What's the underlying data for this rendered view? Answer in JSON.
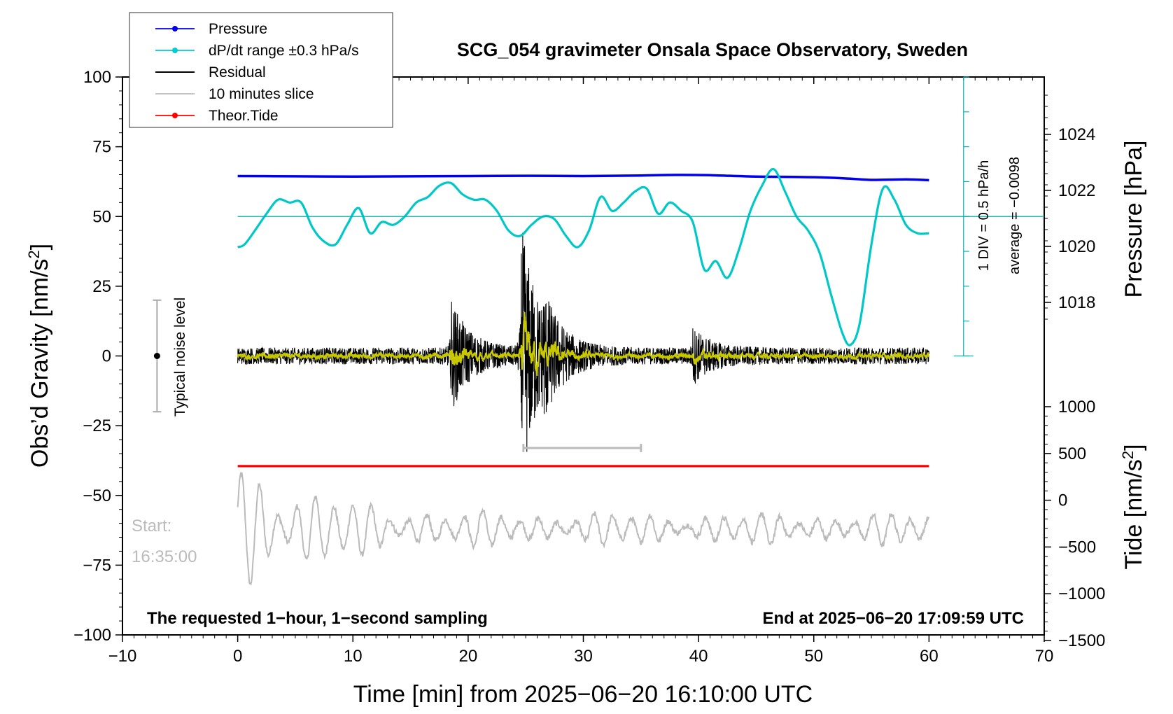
{
  "chart_data": {
    "type": "line",
    "title": "SCG_054 gravimeter Onsala Space Observatory, Sweden",
    "xlabel": "Time [min] from 2025−06−20 16:10:00 UTC",
    "ylabel_left": "Obs’d Gravity [nm/s²]",
    "ylabel_right_top": "Pressure [hPa]",
    "ylabel_right_bottom": "Tide [nm/s²]",
    "xlim": [
      -10,
      70
    ],
    "ylim_left": [
      -100,
      100
    ],
    "xticks": [
      "−10",
      "0",
      "10",
      "20",
      "30",
      "40",
      "50",
      "60",
      "70"
    ],
    "yticks_left": [
      "100",
      "75",
      "50",
      "25",
      "0",
      "−25",
      "−50",
      "−75",
      "−100"
    ],
    "pressure_ticks": [
      "1024",
      "1022",
      "1020",
      "1018"
    ],
    "tide_ticks": [
      "1000",
      "500",
      "0",
      "−500",
      "−1000",
      "−1500"
    ],
    "legend": [
      {
        "label": "Pressure",
        "color": "#0000ee",
        "marker": true
      },
      {
        "label": "dP/dt range ±0.3 hPa/s",
        "color": "#00cccc",
        "marker": true
      },
      {
        "label": "Residual",
        "color": "#000000",
        "marker": false
      },
      {
        "label": "10 minutes slice",
        "color": "#bbbbbb",
        "marker": false
      },
      {
        "label": "Theor.Tide",
        "color": "#ff0000",
        "marker": true
      }
    ],
    "annotations": {
      "noise_label": "Typical noise level",
      "div_label": "1 DIV = 0.5 hPa/h",
      "average_label": "average = −0.0098",
      "start_label": "Start:",
      "start_time": "16:35:00",
      "bottom_left": "The requested 1−hour, 1−second sampling",
      "bottom_right": "End at 2025−06−20 17:09:59 UTC"
    },
    "series": [
      {
        "name": "Pressure",
        "color": "#0000ee",
        "x": [
          0,
          5,
          10,
          15,
          20,
          25,
          30,
          35,
          38,
          41,
          45,
          50,
          53,
          55,
          58,
          60
        ],
        "y": [
          64.5,
          64.4,
          64.3,
          64.4,
          64.5,
          64.6,
          64.5,
          64.7,
          64.9,
          64.8,
          64.3,
          64.1,
          63.6,
          63.1,
          63.3,
          63.0
        ]
      },
      {
        "name": "dP/dt range ±0.3 hPa/s",
        "color": "#00c8c8",
        "x": [
          0,
          0.6,
          1.5,
          2.5,
          3.5,
          4.5,
          5.5,
          6.5,
          7.5,
          8.5,
          9.5,
          10.5,
          11.5,
          12.5,
          13.5,
          14.5,
          15.5,
          16.5,
          17.5,
          18.5,
          19.5,
          20.5,
          21.5,
          22.5,
          23.5,
          24.5,
          25.5,
          26.5,
          27.5,
          28.5,
          29.5,
          30.5,
          31.5,
          32.5,
          33.5,
          34.5,
          35.5,
          36.5,
          37.5,
          38.5,
          39.5,
          40.5,
          41.5,
          42.5,
          43.5,
          44.5,
          45.5,
          46.5,
          47.5,
          48.5,
          49.5,
          50.5,
          51.5,
          52.5,
          53.2,
          54,
          55,
          56,
          57,
          58,
          59,
          60
        ],
        "y": [
          39,
          40,
          45,
          51,
          56,
          55,
          55,
          46,
          41,
          40,
          47,
          53,
          44,
          48,
          47,
          50,
          55,
          57,
          61,
          62,
          58,
          56,
          56,
          52,
          45,
          43,
          47,
          50,
          49,
          43,
          39,
          45,
          57,
          52,
          55,
          59,
          60,
          51,
          55,
          52,
          48,
          31,
          34,
          28,
          38,
          52,
          61,
          67,
          59,
          50,
          45,
          37,
          22,
          8,
          4,
          12,
          40,
          60,
          56,
          47,
          44,
          44
        ]
      },
      {
        "name": "Theor.Tide",
        "color": "#ff0000",
        "x": [
          0,
          60
        ],
        "y": [
          -39.5,
          -39.5
        ]
      }
    ],
    "residual": {
      "color": "#000000",
      "filtered_color": "#c8c800",
      "x_range": [
        0,
        60
      ],
      "baseline": 0,
      "noise_amplitude": 3,
      "events": [
        {
          "x": 18.5,
          "amplitude": 18
        },
        {
          "x": 24.6,
          "amplitude": 45
        },
        {
          "x": 26.5,
          "amplitude": 10
        },
        {
          "x": 39.5,
          "amplitude": 8
        }
      ]
    },
    "slice_marker": {
      "x_start": 24.8,
      "x_end": 35,
      "y": -33,
      "color": "#bbbbbb"
    },
    "slice": {
      "name": "10 minutes slice",
      "color": "#bbbbbb",
      "center_y": -62,
      "amplitude_start": 32,
      "amplitude_end": 6
    },
    "noise_bar": {
      "x": -7,
      "y_center": 0,
      "y_half_range": 20
    },
    "dpdt_scale": {
      "x": 63,
      "y_min": 0,
      "y_max": 100,
      "baseline_y": 50
    }
  }
}
